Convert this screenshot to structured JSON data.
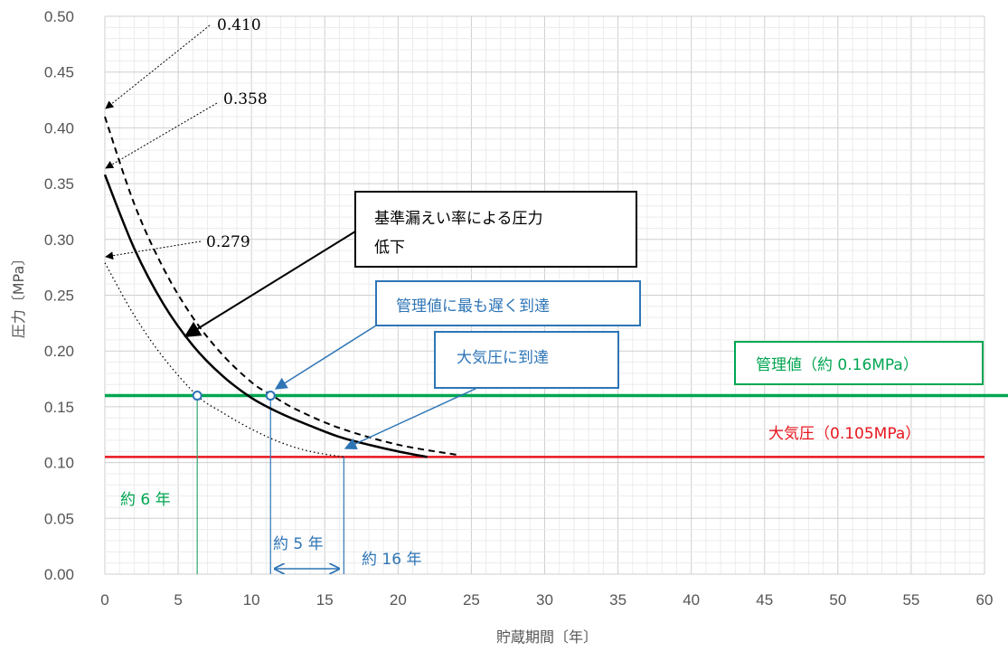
{
  "chart_data": {
    "type": "line",
    "xlabel": "貯蔵期間〔年〕",
    "ylabel": "圧力〔MPa〕",
    "xlim": [
      0,
      60
    ],
    "ylim": [
      0,
      0.5
    ],
    "x_ticks": [
      "0",
      "5",
      "10",
      "15",
      "20",
      "25",
      "30",
      "35",
      "40",
      "45",
      "50",
      "55",
      "60"
    ],
    "y_ticks": [
      "0.00",
      "0.05",
      "0.10",
      "0.15",
      "0.20",
      "0.25",
      "0.30",
      "0.35",
      "0.40",
      "0.45",
      "0.50"
    ],
    "grid": true,
    "series": [
      {
        "style": "dashed",
        "color": "#000000",
        "x": [
          0,
          2,
          4,
          6,
          8,
          10,
          11.3,
          13,
          16,
          20,
          24
        ],
        "y": [
          0.41,
          0.332,
          0.274,
          0.23,
          0.197,
          0.172,
          0.161,
          0.148,
          0.131,
          0.116,
          0.107
        ]
      },
      {
        "style": "solid",
        "color": "#000000",
        "x": [
          0,
          2,
          4,
          6,
          8,
          10,
          12,
          14,
          16,
          18,
          20,
          22
        ],
        "y": [
          0.358,
          0.292,
          0.242,
          0.205,
          0.178,
          0.158,
          0.144,
          0.133,
          0.123,
          0.116,
          0.11,
          0.105
        ]
      },
      {
        "style": "dotted",
        "color": "#000000",
        "x": [
          0,
          2,
          4,
          6.3,
          8,
          10,
          12,
          14,
          16.3
        ],
        "y": [
          0.279,
          0.232,
          0.194,
          0.16,
          0.145,
          0.13,
          0.118,
          0.11,
          0.105
        ]
      }
    ],
    "reference_lines": [
      {
        "y": 0.16,
        "color": "#00a651",
        "label": "管理値（約 0.16MPa）"
      },
      {
        "y": 0.105,
        "color": "#e8171f",
        "label": "大気圧（0.105MPa）"
      }
    ],
    "markers": [
      {
        "x": 6.3,
        "y": 0.16
      },
      {
        "x": 11.3,
        "y": 0.16
      }
    ],
    "vertical_lines": [
      6.3,
      11.3,
      16.3
    ],
    "annotations": {
      "val_410": "0.410",
      "val_358": "0.358",
      "val_279": "0.279",
      "black_box": [
        "基準漏えい率による圧力",
        "低下"
      ],
      "blue_box_1": "管理値に最も遅く到達",
      "blue_box_2": "大気圧に到達",
      "green_6": "約 6 年",
      "blue_5": "約 5 年",
      "blue_16": "約 16 年"
    },
    "colors": {
      "blue": "#2e75b6",
      "green": "#00a651",
      "red": "#e8171f",
      "grid": "#d9d9d9"
    }
  }
}
